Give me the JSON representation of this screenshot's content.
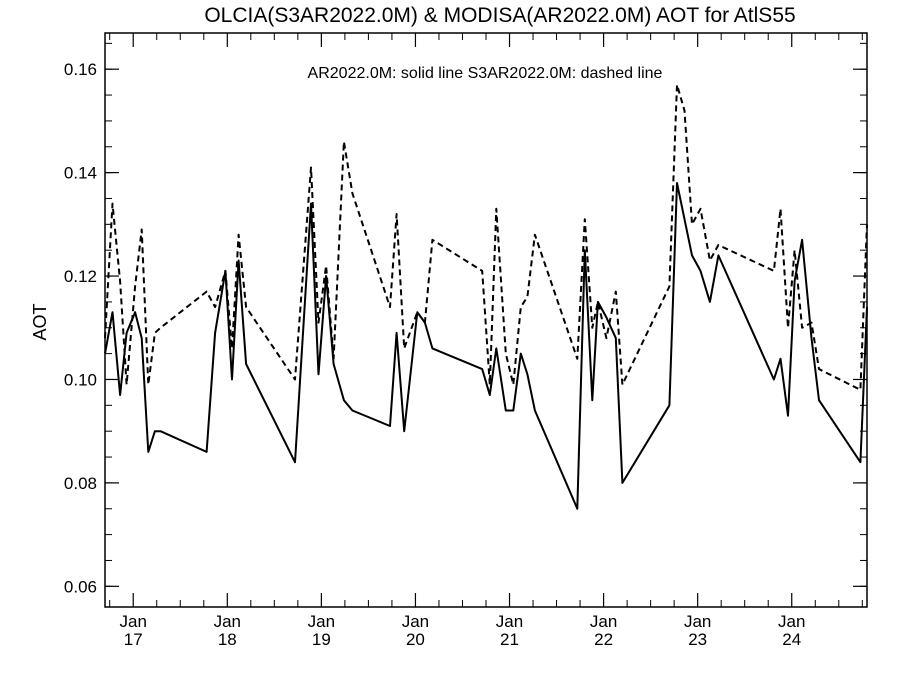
{
  "chart_data": {
    "type": "line",
    "title": "OLCIA(S3AR2022.0M) & MODISA(AR2022.0M)  AOT for AtlS55",
    "ylabel": "AOT",
    "xlabel": "",
    "annotation": "AR2022.0M: solid line   S3AR2022.0M: dashed line",
    "xlim": [
      16.7,
      24.8
    ],
    "ylim": [
      0.056,
      0.167
    ],
    "y_ticks": [
      0.06,
      0.08,
      0.1,
      0.12,
      0.14,
      0.16
    ],
    "y_tick_labels": [
      "0.06",
      "0.08",
      "0.10",
      "0.12",
      "0.14",
      "0.16"
    ],
    "x_ticks": [
      {
        "value": 17,
        "month": "Jan",
        "day": "17"
      },
      {
        "value": 18,
        "month": "Jan",
        "day": "18"
      },
      {
        "value": 19,
        "month": "Jan",
        "day": "19"
      },
      {
        "value": 20,
        "month": "Jan",
        "day": "20"
      },
      {
        "value": 21,
        "month": "Jan",
        "day": "21"
      },
      {
        "value": 22,
        "month": "Jan",
        "day": "22"
      },
      {
        "value": 23,
        "month": "Jan",
        "day": "23"
      },
      {
        "value": 24,
        "month": "Jan",
        "day": "24"
      }
    ],
    "grid": false,
    "series": [
      {
        "style": "solid",
        "color": "#000000",
        "x": [
          16.7,
          16.78,
          16.86,
          16.93,
          17.02,
          17.09,
          17.16,
          17.23,
          17.29,
          17.78,
          17.87,
          17.98,
          18.05,
          18.12,
          18.2,
          18.72,
          18.89,
          18.97,
          19.05,
          19.13,
          19.24,
          19.33,
          19.73,
          19.8,
          19.88,
          20.02,
          20.1,
          20.18,
          20.71,
          20.79,
          20.86,
          20.96,
          21.04,
          21.12,
          21.19,
          21.27,
          21.72,
          21.8,
          21.88,
          21.94,
          22.03,
          22.13,
          22.2,
          22.7,
          22.78,
          22.86,
          22.94,
          23.03,
          23.13,
          23.22,
          23.81,
          23.88,
          23.96,
          24.03,
          24.11,
          24.21,
          24.29,
          24.73,
          24.8
        ],
        "y": [
          0.105,
          0.113,
          0.097,
          0.109,
          0.113,
          0.108,
          0.086,
          0.09,
          0.09,
          0.086,
          0.109,
          0.121,
          0.1,
          0.123,
          0.103,
          0.084,
          0.134,
          0.101,
          0.12,
          0.103,
          0.096,
          0.094,
          0.091,
          0.109,
          0.09,
          0.113,
          0.111,
          0.106,
          0.102,
          0.097,
          0.106,
          0.094,
          0.094,
          0.105,
          0.101,
          0.094,
          0.075,
          0.125,
          0.096,
          0.115,
          0.112,
          0.108,
          0.08,
          0.095,
          0.138,
          0.131,
          0.124,
          0.121,
          0.115,
          0.124,
          0.1,
          0.104,
          0.093,
          0.119,
          0.127,
          0.108,
          0.096,
          0.084,
          0.114
        ]
      },
      {
        "style": "dashed",
        "color": "#000000",
        "x": [
          16.7,
          16.78,
          16.86,
          16.93,
          17.02,
          17.09,
          17.16,
          17.23,
          17.29,
          17.78,
          17.87,
          17.98,
          18.05,
          18.12,
          18.2,
          18.72,
          18.89,
          18.97,
          19.05,
          19.13,
          19.24,
          19.33,
          19.73,
          19.8,
          19.88,
          20.02,
          20.1,
          20.18,
          20.71,
          20.79,
          20.86,
          20.96,
          21.04,
          21.12,
          21.19,
          21.27,
          21.72,
          21.8,
          21.88,
          21.94,
          22.03,
          22.13,
          22.2,
          22.7,
          22.78,
          22.86,
          22.94,
          23.03,
          23.13,
          23.22,
          23.81,
          23.88,
          23.96,
          24.03,
          24.11,
          24.21,
          24.29,
          24.73,
          24.8
        ],
        "y": [
          0.108,
          0.134,
          0.119,
          0.099,
          0.118,
          0.129,
          0.099,
          0.109,
          0.11,
          0.117,
          0.114,
          0.121,
          0.106,
          0.128,
          0.114,
          0.1,
          0.141,
          0.111,
          0.122,
          0.104,
          0.146,
          0.136,
          0.114,
          0.132,
          0.106,
          0.113,
          0.111,
          0.127,
          0.121,
          0.099,
          0.133,
          0.105,
          0.099,
          0.114,
          0.116,
          0.128,
          0.104,
          0.131,
          0.11,
          0.115,
          0.108,
          0.117,
          0.099,
          0.118,
          0.157,
          0.152,
          0.13,
          0.133,
          0.123,
          0.126,
          0.121,
          0.133,
          0.11,
          0.125,
          0.11,
          0.111,
          0.102,
          0.098,
          0.13
        ]
      }
    ]
  }
}
